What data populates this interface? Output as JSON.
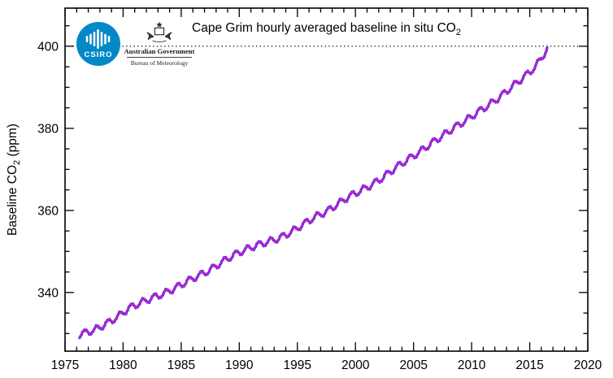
{
  "page": {
    "background": "#ffffff"
  },
  "header": {
    "title_prefix": "Cape Grim hourly averaged baseline in situ CO",
    "title_sub": "2",
    "csiro_label": "CSIRO",
    "gov_line1": "Australian Government",
    "gov_line2": "Bureau of Meteorology"
  },
  "chart_data": {
    "type": "line",
    "title": "Cape Grim hourly averaged baseline in situ CO2",
    "xlabel": "",
    "ylabel_prefix": "Baseline CO",
    "ylabel_sub": "2",
    "ylabel_suffix": " (ppm)",
    "xlim": [
      1975,
      2020
    ],
    "ylim": [
      325.7,
      409.3
    ],
    "x_major_ticks": [
      1975,
      1980,
      1985,
      1990,
      1995,
      2000,
      2005,
      2010,
      2015,
      2020
    ],
    "x_minor_step": 1,
    "y_major_ticks": [
      340,
      360,
      380,
      400
    ],
    "y_minor_step": 5,
    "grid": "off",
    "legend": "none",
    "reference_line": {
      "y": 400,
      "style": "dotted",
      "color": "#000000"
    },
    "x_range_data": [
      1976.25,
      2016.55
    ],
    "seasonal_amplitude_ppm": 0.75,
    "seasonal_peak_month_fraction": 0.7,
    "annual_baseline_midyear": [
      [
        1976,
        330.0
      ],
      [
        1977,
        330.8
      ],
      [
        1978,
        332.3
      ],
      [
        1979,
        334.0
      ],
      [
        1980,
        336.2
      ],
      [
        1981,
        337.5
      ],
      [
        1982,
        338.7
      ],
      [
        1983,
        339.7
      ],
      [
        1984,
        341.1
      ],
      [
        1985,
        342.7
      ],
      [
        1986,
        344.1
      ],
      [
        1987,
        345.5
      ],
      [
        1988,
        347.4
      ],
      [
        1989,
        349.1
      ],
      [
        1990,
        350.4
      ],
      [
        1991,
        351.5
      ],
      [
        1992,
        352.4
      ],
      [
        1993,
        353.3
      ],
      [
        1994,
        354.8
      ],
      [
        1995,
        356.6
      ],
      [
        1996,
        358.4
      ],
      [
        1997,
        359.7
      ],
      [
        1998,
        361.6
      ],
      [
        1999,
        363.5
      ],
      [
        2000,
        364.9
      ],
      [
        2001,
        366.4
      ],
      [
        2002,
        368.3
      ],
      [
        2003,
        370.5
      ],
      [
        2004,
        372.4
      ],
      [
        2005,
        374.2
      ],
      [
        2006,
        376.3
      ],
      [
        2007,
        378.2
      ],
      [
        2008,
        380.2
      ],
      [
        2009,
        381.9
      ],
      [
        2010,
        383.9
      ],
      [
        2011,
        385.7
      ],
      [
        2012,
        387.8
      ],
      [
        2013,
        390.2
      ],
      [
        2014,
        392.5
      ],
      [
        2015,
        395.0
      ],
      [
        2016,
        399.3
      ]
    ],
    "series": [
      {
        "name": "hourly averaged baseline CO2 (blue)",
        "color": "#3b35d8",
        "width": 3.2
      },
      {
        "name": "baseline overlay (magenta)",
        "color": "#e511cd",
        "width": 1.6
      }
    ]
  }
}
